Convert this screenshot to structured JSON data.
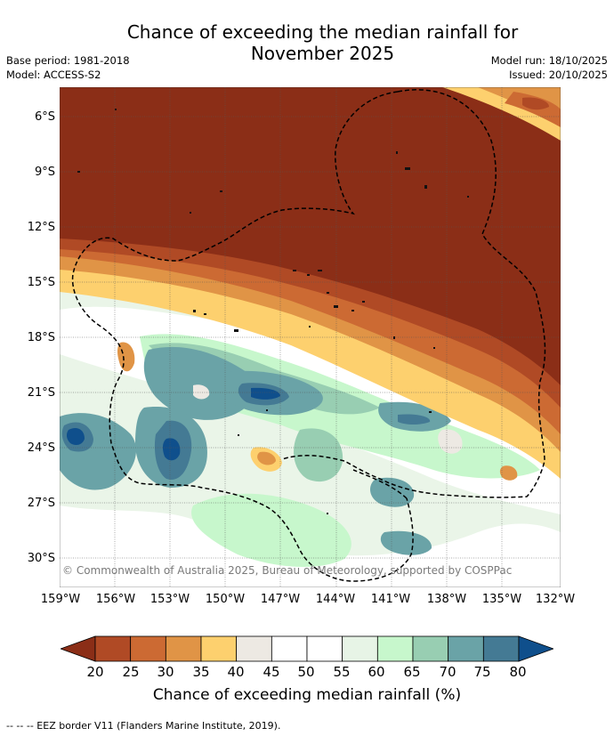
{
  "header": {
    "title_line1": "Chance of exceeding the median rainfall for",
    "title_line2": "November 2025",
    "base_period": "Base period: 1981-2018",
    "model": "Model: ACCESS-S2",
    "model_run": "Model run: 18/10/2025",
    "issued": "Issued: 20/10/2025"
  },
  "map": {
    "lat_labels": [
      "6°S",
      "9°S",
      "12°S",
      "15°S",
      "18°S",
      "21°S",
      "24°S",
      "27°S",
      "30°S"
    ],
    "lon_labels": [
      "159°W",
      "156°W",
      "153°W",
      "150°W",
      "147°W",
      "144°W",
      "141°W",
      "138°W",
      "135°W",
      "132°W"
    ],
    "copyright": "© Commonwealth of Australia 2025, Bureau of Meteorology, supported by COSPPac",
    "border_style": "dashed black line"
  },
  "colorbar": {
    "ticks": [
      "20",
      "25",
      "30",
      "35",
      "40",
      "45",
      "50",
      "55",
      "60",
      "65",
      "70",
      "75",
      "80"
    ],
    "colors": [
      "#8b2e17",
      "#b04a25",
      "#cc6a33",
      "#e09446",
      "#fdd06e",
      "#ede9e3",
      "#ffffff",
      "#ffffff",
      "#e7f4e6",
      "#c7f7cc",
      "#98ceb2",
      "#6aa3a7",
      "#447a94",
      "#0f4f8c"
    ],
    "label": "Chance of exceeding median rainfall (%)"
  },
  "footer": {
    "legend": "--  --  -- EEZ border V11 (Flanders Marine Institute, 2019)."
  }
}
